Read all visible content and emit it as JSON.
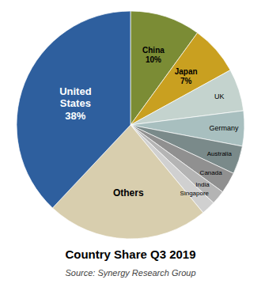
{
  "chart_data": {
    "type": "pie",
    "title": "Country Share Q3 2019",
    "annotations": [
      "Source: Synergy Research Group"
    ],
    "categories": [
      "China",
      "Japan",
      "UK",
      "Germany",
      "Australia",
      "Canada",
      "India",
      "Singapore",
      "Others",
      "United\nStates"
    ],
    "values": [
      10,
      7,
      6,
      5,
      4,
      3,
      2,
      2,
      23,
      38
    ],
    "value_labels": [
      "10%",
      "7%",
      null,
      null,
      null,
      null,
      null,
      null,
      null,
      "38%"
    ],
    "colors": [
      "#7B8C35",
      "#C9A020",
      "#C4D3CE",
      "#A8BFBF",
      "#7A8A8A",
      "#909090",
      "#B4B4B4",
      "#D0D0D0",
      "#D8CEAE",
      "#2E5F9E"
    ]
  }
}
